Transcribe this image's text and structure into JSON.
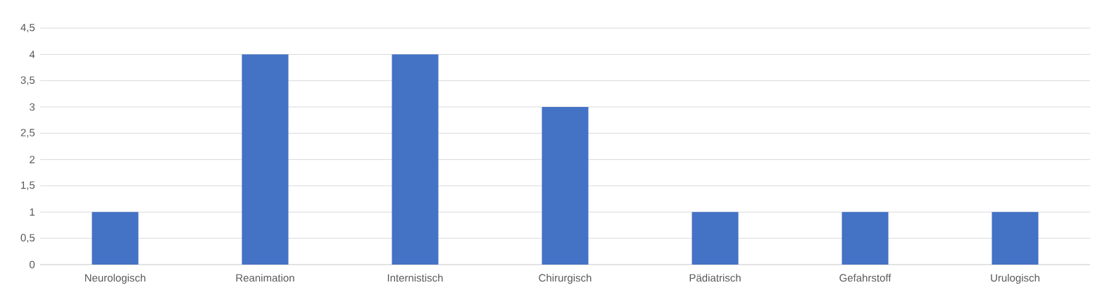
{
  "chart_data": {
    "type": "bar",
    "categories": [
      "Neurologisch",
      "Reanimation",
      "Internistisch",
      "Chirurgisch",
      "Pädiatrisch",
      "Gefahrstoff",
      "Urulogisch"
    ],
    "values": [
      1,
      4,
      4,
      3,
      1,
      1,
      1
    ],
    "color": "#4472c4",
    "ylim": [
      0,
      4.5
    ],
    "yticks": [
      0,
      {
        "value": 0.5,
        "label": "0,5"
      },
      1,
      {
        "value": 1.5,
        "label": "1,5"
      },
      2,
      {
        "value": 2.5,
        "label": "2,5"
      },
      3,
      {
        "value": 3.5,
        "label": "3,5"
      },
      4,
      {
        "value": 4.5,
        "label": "4,5"
      }
    ],
    "grid": "y"
  }
}
